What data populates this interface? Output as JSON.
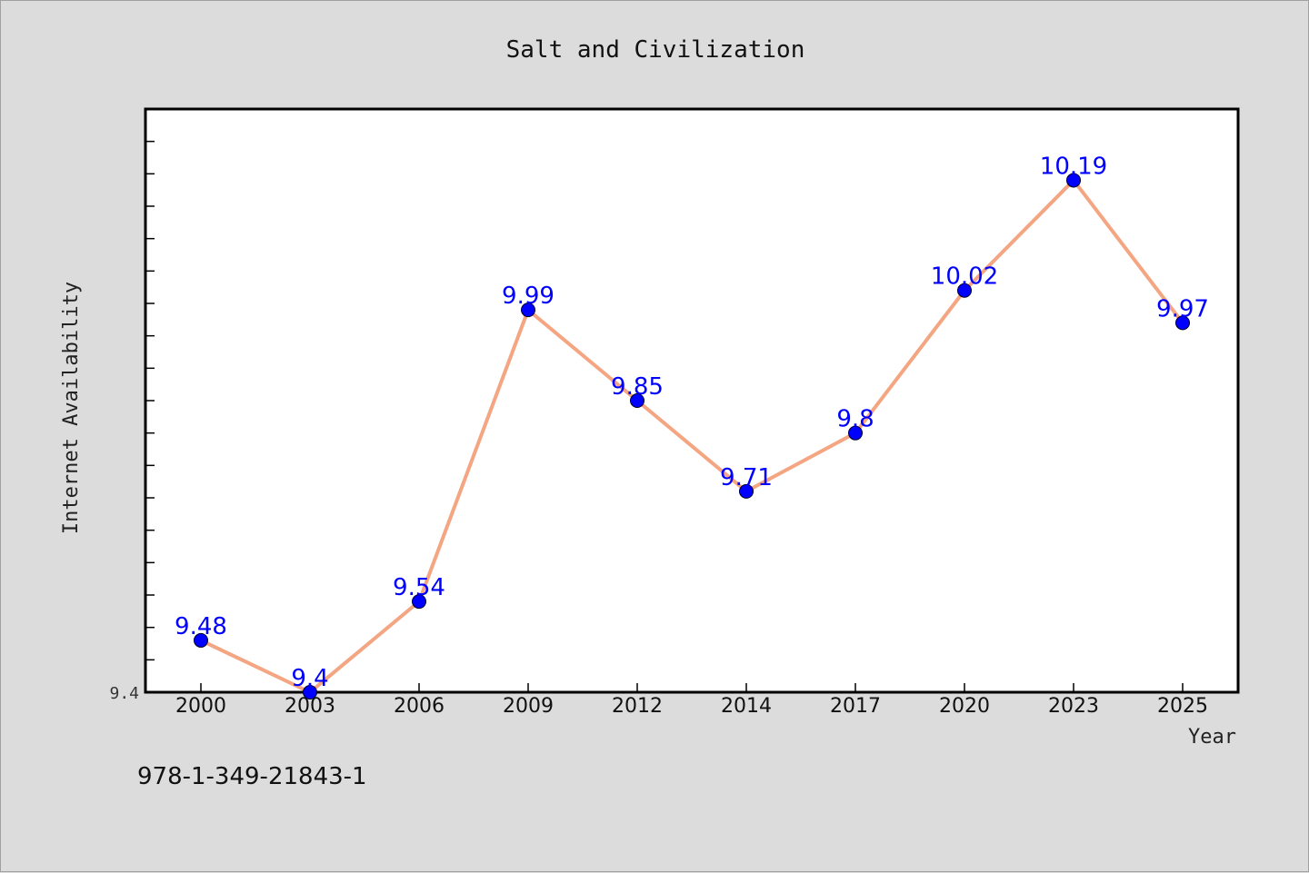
{
  "colors": {
    "background": "#dcdcdc",
    "plot_background": "#ffffff",
    "line": "#f4a582",
    "marker": "#0000ff",
    "data_label": "#0000ff"
  },
  "chart_data": {
    "type": "line",
    "title": "Salt and Civilization",
    "xlabel": "Year",
    "ylabel": "Internet Availability",
    "categories": [
      "2000",
      "2003",
      "2006",
      "2009",
      "2012",
      "2014",
      "2017",
      "2020",
      "2023",
      "2025"
    ],
    "values": [
      9.48,
      9.4,
      9.54,
      9.99,
      9.85,
      9.71,
      9.8,
      10.02,
      10.19,
      9.97
    ],
    "data_labels": [
      "9.48",
      "9.4",
      "9.54",
      "9.99",
      "9.85",
      "9.71",
      "9.8",
      "10.02",
      "10.19",
      "9.97"
    ],
    "ylim": [
      9.4,
      10.3
    ],
    "y_tick_labels": [
      {
        "value": 9.4,
        "label": "9.4"
      }
    ],
    "grid": false,
    "legend": "none"
  },
  "annotation": {
    "isbn": "978-1-349-21843-1"
  }
}
